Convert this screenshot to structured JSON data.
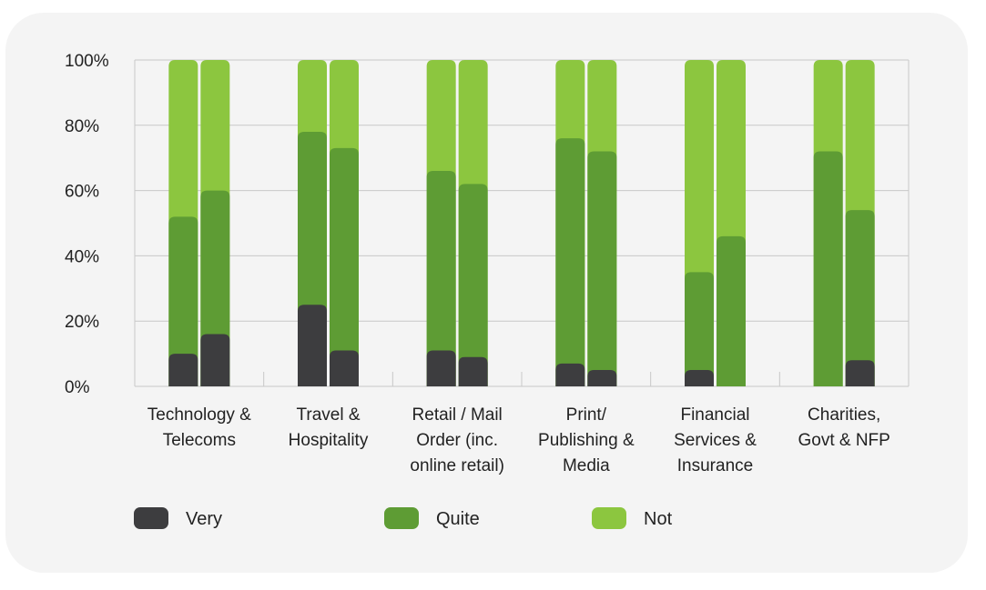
{
  "chart_data": {
    "type": "bar",
    "stacked": true,
    "grouped_bars_per_category": 2,
    "categories": [
      [
        "Technology &",
        "Telecoms"
      ],
      [
        "Travel &",
        "Hospitality"
      ],
      [
        "Retail / Mail",
        "Order (inc.",
        "online retail)"
      ],
      [
        "Print/",
        "Publishing &",
        "Media"
      ],
      [
        "Financial",
        "Services &",
        "Insurance"
      ],
      [
        "Charities,",
        "Govt & NFP"
      ]
    ],
    "series": [
      {
        "name": "Very",
        "color": "#3d3d3f",
        "values": [
          [
            10,
            16
          ],
          [
            25,
            11
          ],
          [
            11,
            9
          ],
          [
            7,
            5
          ],
          [
            5,
            0
          ],
          [
            0,
            8
          ]
        ]
      },
      {
        "name": "Quite",
        "color": "#5e9c34",
        "values": [
          [
            42,
            44
          ],
          [
            53,
            62
          ],
          [
            55,
            53
          ],
          [
            69,
            67
          ],
          [
            30,
            46
          ],
          [
            72,
            46
          ]
        ]
      },
      {
        "name": "Not",
        "color": "#8cc63f",
        "values": [
          [
            48,
            40
          ],
          [
            22,
            27
          ],
          [
            34,
            38
          ],
          [
            24,
            28
          ],
          [
            65,
            54
          ],
          [
            28,
            46
          ]
        ]
      }
    ],
    "ylim": [
      0,
      100
    ],
    "yticks": [
      "0%",
      "20%",
      "40%",
      "60%",
      "80%",
      "100%"
    ],
    "grid": true,
    "legend_position": "bottom",
    "title": "",
    "xlabel": "",
    "ylabel": ""
  }
}
